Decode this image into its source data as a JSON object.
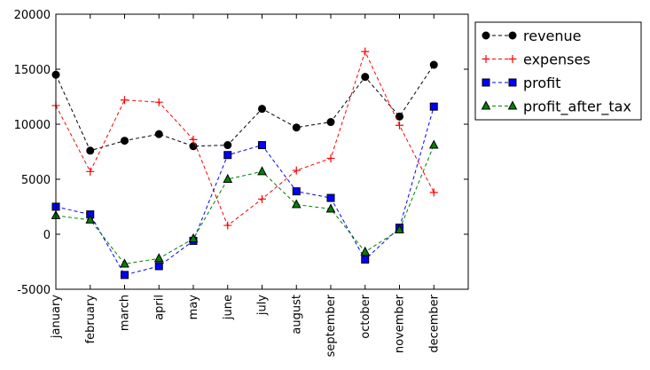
{
  "chart_data": {
    "type": "line",
    "title": "",
    "xlabel": "",
    "ylabel": "",
    "categories": [
      "january",
      "february",
      "march",
      "april",
      "may",
      "june",
      "july",
      "august",
      "september",
      "october",
      "november",
      "december"
    ],
    "ylim": [
      -5000,
      20000
    ],
    "yticks": [
      -5000,
      0,
      5000,
      10000,
      15000,
      20000
    ],
    "grid": false,
    "legend_position": "outside-upper-right",
    "series": [
      {
        "name": "revenue",
        "color": "#000000",
        "marker": "circle",
        "values": [
          14500,
          7600,
          8500,
          9100,
          8000,
          8100,
          11400,
          9700,
          10200,
          14300,
          10700,
          15400
        ]
      },
      {
        "name": "expenses",
        "color": "#ff0000",
        "marker": "plus",
        "values": [
          11700,
          5700,
          12200,
          12000,
          8600,
          800,
          3200,
          5800,
          6900,
          16600,
          9900,
          3800
        ]
      },
      {
        "name": "profit",
        "color": "#0000ff",
        "marker": "square",
        "values": [
          2500,
          1800,
          -3700,
          -2900,
          -600,
          7200,
          8100,
          3900,
          3300,
          -2300,
          600,
          11600
        ]
      },
      {
        "name": "profit_after_tax",
        "color": "#008000",
        "marker": "triangle",
        "values": [
          1700,
          1300,
          -2700,
          -2200,
          -400,
          5000,
          5700,
          2700,
          2300,
          -1600,
          400,
          8100
        ]
      }
    ]
  }
}
